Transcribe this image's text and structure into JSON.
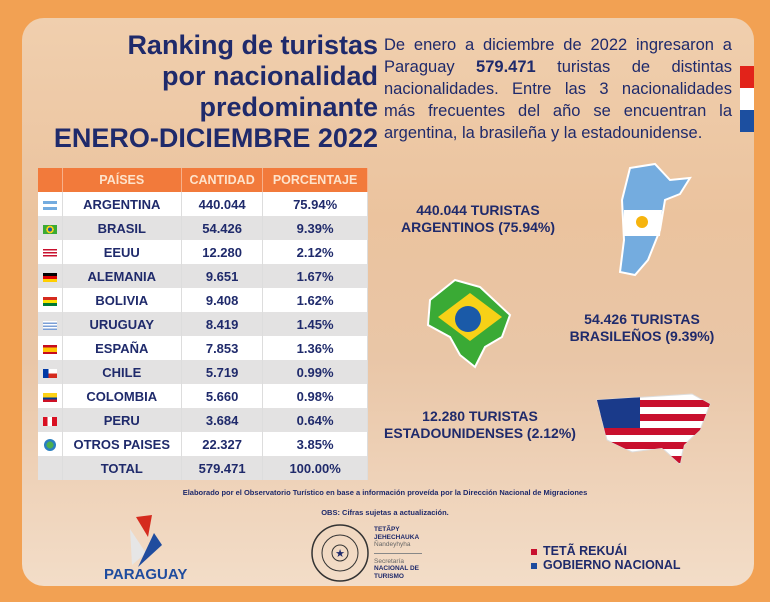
{
  "title": [
    "Ranking de turistas",
    "por nacionalidad",
    "predominante",
    "ENERO-DICIEMBRE 2022"
  ],
  "intro": {
    "before": "De enero a diciembre de 2022 ingresaron a Paraguay ",
    "highlight": "579.471",
    "after": " turistas de distintas nacionalidades. Entre las 3 nacionalidades más frecuentes del año se encuentran la argentina, la brasileña y la estadounidense."
  },
  "table": {
    "headers": [
      "PAÍSES",
      "CANTIDAD",
      "PORCENTAJE"
    ],
    "rows": [
      {
        "flag": "argentina",
        "pais": "ARGENTINA",
        "cantidad": "440.044",
        "porcentaje": "75.94%"
      },
      {
        "flag": "brasil",
        "pais": "BRASIL",
        "cantidad": "54.426",
        "porcentaje": "9.39%"
      },
      {
        "flag": "eeuu",
        "pais": "EEUU",
        "cantidad": "12.280",
        "porcentaje": "2.12%"
      },
      {
        "flag": "alemania",
        "pais": "ALEMANIA",
        "cantidad": "9.651",
        "porcentaje": "1.67%"
      },
      {
        "flag": "bolivia",
        "pais": "BOLIVIA",
        "cantidad": "9.408",
        "porcentaje": "1.62%"
      },
      {
        "flag": "uruguay",
        "pais": "URUGUAY",
        "cantidad": "8.419",
        "porcentaje": "1.45%"
      },
      {
        "flag": "espana",
        "pais": "ESPAÑA",
        "cantidad": "7.853",
        "porcentaje": "1.36%"
      },
      {
        "flag": "chile",
        "pais": "CHILE",
        "cantidad": "5.719",
        "porcentaje": "0.99%"
      },
      {
        "flag": "colombia",
        "pais": "COLOMBIA",
        "cantidad": "5.660",
        "porcentaje": "0.98%"
      },
      {
        "flag": "peru",
        "pais": "PERU",
        "cantidad": "3.684",
        "porcentaje": "0.64%"
      },
      {
        "flag": "globe",
        "pais": "OTROS PAISES",
        "cantidad": "22.327",
        "porcentaje": "3.85%"
      }
    ],
    "total": {
      "pais": "TOTAL",
      "cantidad": "579.471",
      "porcentaje": "100.00%"
    }
  },
  "callouts": {
    "argentina": [
      "440.044 TURISTAS",
      "ARGENTINOS (75.94%)"
    ],
    "brasil": [
      "54.426 TURISTAS",
      "BRASILEÑOS (9.39%)"
    ],
    "eeuu": [
      "12.280 TURISTAS",
      "ESTADOUNIDENSES (2.12%)"
    ]
  },
  "footer": {
    "source": "Elaborado por el Observatorio Turístico en base a información proveída por la Dirección Nacional de Migraciones",
    "obs": "OBS: Cifras sujetas a actualización.",
    "paraguay": "PARAGUAY",
    "senatur": [
      "TETÃPY",
      "JEHECHAUKA",
      "Ñandeyhyha",
      "Secretaría",
      "NACIONAL DE",
      "TURISMO"
    ],
    "seal": "REPÚBLICA DEL PARAGUAY",
    "gobierno": [
      "TETÃ REKUÁI",
      "GOBIERNO NACIONAL"
    ]
  },
  "colors": {
    "navy": "#1f2a6b",
    "orange": "#f27a3b",
    "red": "#d52b1e",
    "blue": "#0038a8"
  }
}
